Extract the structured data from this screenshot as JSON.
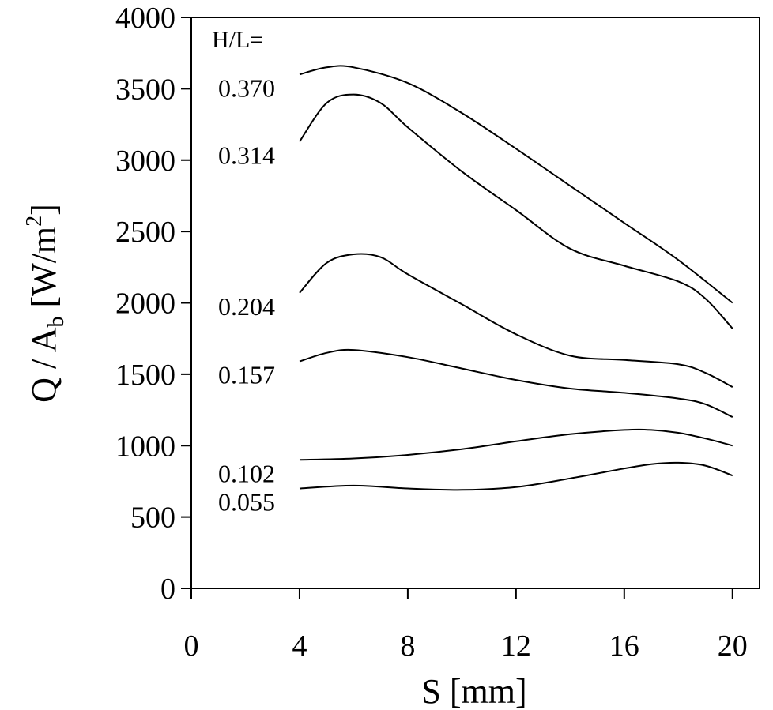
{
  "chart_data": {
    "type": "line",
    "xlabel": "S [mm]",
    "ylabel_parts": {
      "q": "Q / A",
      "sub": "b",
      "unit": " [W/m",
      "sup": "2",
      "close": "]"
    },
    "xlim": [
      0,
      21
    ],
    "ylim": [
      0,
      4000
    ],
    "xticks": [
      0,
      4,
      8,
      12,
      16,
      20
    ],
    "yticks": [
      0,
      500,
      1000,
      1500,
      2000,
      2500,
      3000,
      3500,
      4000
    ],
    "legend_title": "H/L=",
    "series": [
      {
        "name": "0.370",
        "x": [
          4,
          5,
          6,
          8,
          10,
          12,
          14,
          16,
          18,
          20
        ],
        "values": [
          3600,
          3650,
          3650,
          3540,
          3330,
          3080,
          2820,
          2560,
          2300,
          2000
        ]
      },
      {
        "name": "0.314",
        "x": [
          4,
          5,
          6,
          7,
          8,
          10,
          12,
          14,
          16,
          18,
          19,
          20
        ],
        "values": [
          3130,
          3400,
          3460,
          3400,
          3230,
          2920,
          2650,
          2380,
          2260,
          2150,
          2030,
          1820
        ]
      },
      {
        "name": "0.204",
        "x": [
          4,
          5,
          6,
          7,
          8,
          10,
          12,
          14,
          16,
          18,
          19,
          20
        ],
        "values": [
          2070,
          2280,
          2340,
          2320,
          2200,
          1990,
          1780,
          1630,
          1600,
          1570,
          1510,
          1410
        ]
      },
      {
        "name": "0.157",
        "x": [
          4,
          5,
          6,
          8,
          10,
          12,
          14,
          16,
          18,
          19,
          20
        ],
        "values": [
          1590,
          1650,
          1670,
          1620,
          1540,
          1460,
          1400,
          1370,
          1330,
          1290,
          1200
        ]
      },
      {
        "name": "0.102",
        "x": [
          4,
          6,
          8,
          10,
          12,
          14,
          16,
          17,
          18,
          19,
          20
        ],
        "values": [
          900,
          910,
          935,
          975,
          1030,
          1080,
          1110,
          1110,
          1090,
          1050,
          1000
        ]
      },
      {
        "name": "0.055",
        "x": [
          4,
          6,
          8,
          10,
          12,
          14,
          16,
          17,
          18,
          19,
          20
        ],
        "values": [
          700,
          720,
          700,
          690,
          710,
          770,
          840,
          870,
          880,
          860,
          790
        ]
      }
    ],
    "grid": false,
    "legend": "inline-left"
  }
}
